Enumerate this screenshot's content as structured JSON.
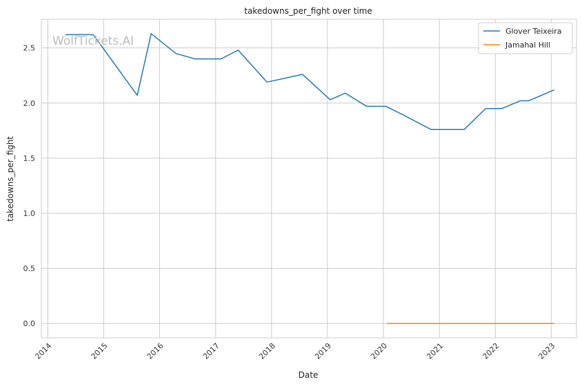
{
  "chart_data": {
    "type": "line",
    "title": "takedowns_per_fight over time",
    "xlabel": "Date",
    "ylabel": "takedowns_per_fight",
    "watermark": "WolfTickets.AI",
    "x_ticks": [
      "2014",
      "2015",
      "2016",
      "2017",
      "2018",
      "2019",
      "2020",
      "2021",
      "2022",
      "2023"
    ],
    "y_ticks": [
      "0.0",
      "0.5",
      "1.0",
      "1.5",
      "2.0",
      "2.5"
    ],
    "ylim": [
      -0.13,
      2.76
    ],
    "xlim": [
      "2013-11-20",
      "2023-06-15"
    ],
    "grid": true,
    "legend_position": "top-right",
    "colors": {
      "series_0": "#1f77b4",
      "series_1": "#ff7f0e",
      "grid": "#cccccc",
      "frame": "#cccccc"
    },
    "series": [
      {
        "name": "Glover Teixeira",
        "color": "#1f77b4",
        "points": [
          {
            "x": "2014-04-26",
            "y": 2.62
          },
          {
            "x": "2014-10-25",
            "y": 2.62
          },
          {
            "x": "2015-08-08",
            "y": 2.07
          },
          {
            "x": "2015-11-07",
            "y": 2.63
          },
          {
            "x": "2016-04-16",
            "y": 2.45
          },
          {
            "x": "2016-08-20",
            "y": 2.4
          },
          {
            "x": "2017-02-04",
            "y": 2.4
          },
          {
            "x": "2017-05-28",
            "y": 2.48
          },
          {
            "x": "2017-12-02",
            "y": 2.19
          },
          {
            "x": "2018-07-22",
            "y": 2.26
          },
          {
            "x": "2019-01-19",
            "y": 2.03
          },
          {
            "x": "2019-04-27",
            "y": 2.09
          },
          {
            "x": "2019-09-14",
            "y": 1.97
          },
          {
            "x": "2020-01-18",
            "y": 1.97
          },
          {
            "x": "2020-05-13",
            "y": 1.89
          },
          {
            "x": "2020-11-07",
            "y": 1.76
          },
          {
            "x": "2021-06-12",
            "y": 1.76
          },
          {
            "x": "2021-10-30",
            "y": 1.95
          },
          {
            "x": "2022-02-12",
            "y": 1.95
          },
          {
            "x": "2022-06-12",
            "y": 2.02
          },
          {
            "x": "2022-08-06",
            "y": 2.02
          },
          {
            "x": "2023-01-21",
            "y": 2.12
          }
        ]
      },
      {
        "name": "Jamahal Hill",
        "color": "#ff7f0e",
        "points": [
          {
            "x": "2020-01-25",
            "y": 0.0
          },
          {
            "x": "2023-01-21",
            "y": 0.0
          }
        ]
      }
    ]
  }
}
